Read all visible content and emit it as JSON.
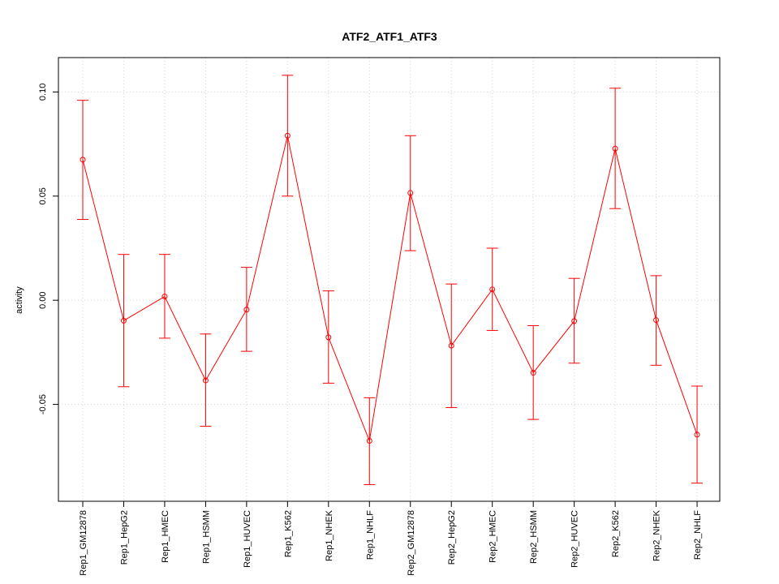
{
  "chart_data": {
    "type": "line",
    "title": "ATF2_ATF1_ATF3",
    "xlabel": "",
    "ylabel": "activity",
    "categories": [
      "Rep1_GM12878",
      "Rep1_HepG2",
      "Rep1_HMEC",
      "Rep1_HSMM",
      "Rep1_HUVEC",
      "Rep1_K562",
      "Rep1_NHEK",
      "Rep1_NHLF",
      "Rep2_GM12878",
      "Rep2_HepG2",
      "Rep2_HMEC",
      "Rep2_HSMM",
      "Rep2_HUVEC",
      "Rep2_K562",
      "Rep2_NHEK",
      "Rep2_NHLF"
    ],
    "series": [
      {
        "values": [
          0.0675,
          -0.0098,
          0.0018,
          -0.0385,
          -0.0045,
          0.079,
          -0.0178,
          -0.0675,
          0.0515,
          -0.0218,
          0.0052,
          -0.0348,
          -0.01,
          0.0728,
          -0.0095,
          -0.0645
        ],
        "upper": [
          0.096,
          0.022,
          0.022,
          -0.0162,
          0.0158,
          0.108,
          0.0045,
          -0.0468,
          0.079,
          0.0078,
          0.025,
          -0.0122,
          0.0105,
          0.1018,
          0.0118,
          -0.0412
        ],
        "lower": [
          0.0388,
          -0.0415,
          -0.0182,
          -0.0605,
          -0.0245,
          0.05,
          -0.0398,
          -0.0885,
          0.0238,
          -0.0515,
          -0.0145,
          -0.0572,
          -0.0302,
          0.044,
          -0.0312,
          -0.0878
        ]
      }
    ],
    "ylim": [
      -0.0965,
      0.1165
    ],
    "yticks": [
      -0.05,
      0.0,
      0.05,
      0.1
    ],
    "ytick_labels": [
      "-0.05",
      "0.00",
      "0.05",
      "0.10"
    ],
    "grid": true,
    "color": "#ff0000"
  }
}
